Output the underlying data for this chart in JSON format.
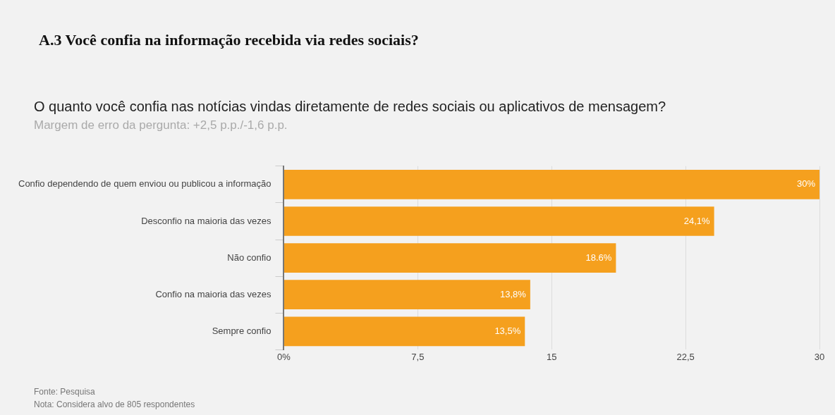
{
  "chart_data": {
    "type": "bar",
    "orientation": "horizontal",
    "title": "A.3 Você confia na informação recebida via redes sociais?",
    "subtitle": "O quanto você confia nas notícias vindas diretamente de redes sociais ou aplicativos de mensagem?",
    "annotations": [
      "Margem de erro da pergunta: +2,5 p.p./-1,6 p.p.",
      "Fonte: Pesquisa",
      "Nota: Considera alvo de 805 respondentes"
    ],
    "categories": [
      "Confio dependendo de quem enviou ou publicou a informação",
      "Desconfio na maioria das vezes",
      "Não confio",
      "Confio na maioria das vezes",
      "Sempre confio"
    ],
    "values": [
      30,
      24.1,
      18.6,
      13.8,
      13.5
    ],
    "value_labels": [
      "30%",
      "24,1%",
      "18.6%",
      "13,8%",
      "13,5%"
    ],
    "color": "#f5a01e",
    "xlim": [
      0,
      30
    ],
    "xticks": [
      {
        "value": 0,
        "label": "0%"
      },
      {
        "value": 7.5,
        "label": "7,5"
      },
      15,
      {
        "value": 22.5,
        "label": "22,5"
      },
      30
    ],
    "grid": "x",
    "legend": false
  }
}
